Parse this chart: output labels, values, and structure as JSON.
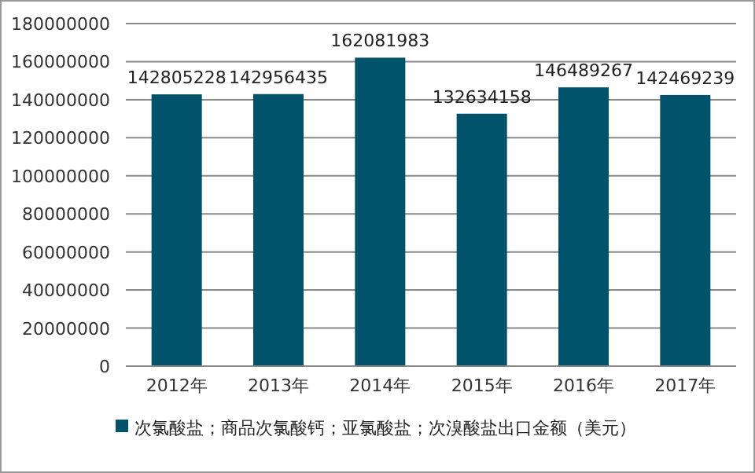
{
  "chart_data": {
    "type": "bar",
    "categories": [
      "2012年",
      "2013年",
      "2014年",
      "2015年",
      "2016年",
      "2017年"
    ],
    "series": [
      {
        "name": "次氯酸盐；商品次氯酸钙；亚氯酸盐；次溴酸盐出口金额（美元）",
        "color": "#00536b",
        "values": [
          142805228,
          142956435,
          162081983,
          132634158,
          146489267,
          142469239
        ]
      }
    ],
    "ylim": [
      0,
      180000000
    ],
    "yticks": [
      0,
      20000000,
      40000000,
      60000000,
      80000000,
      100000000,
      120000000,
      140000000,
      160000000,
      180000000
    ],
    "grid": "y",
    "legend": "bottom",
    "data_labels": true
  }
}
